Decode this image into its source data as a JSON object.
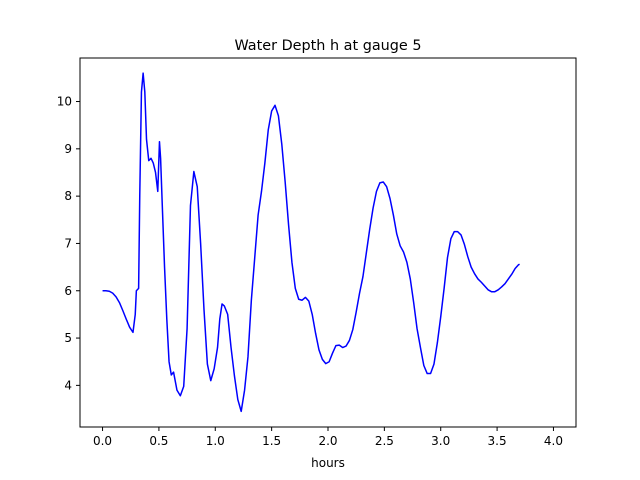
{
  "chart_data": {
    "type": "line",
    "title": "Water Depth h at gauge 5",
    "xlabel": "hours",
    "ylabel": "",
    "xlim": [
      -0.2,
      4.2
    ],
    "ylim": [
      3.12,
      10.92
    ],
    "x_ticks": [
      0.0,
      0.5,
      1.0,
      1.5,
      2.0,
      2.5,
      3.0,
      3.5,
      4.0
    ],
    "x_tick_labels": [
      "0.0",
      "0.5",
      "1.0",
      "1.5",
      "2.0",
      "2.5",
      "3.0",
      "3.5",
      "4.0"
    ],
    "y_ticks": [
      4,
      5,
      6,
      7,
      8,
      9,
      10
    ],
    "y_tick_labels": [
      "4",
      "5",
      "6",
      "7",
      "8",
      "9",
      "10"
    ],
    "grid": false,
    "legend": "none",
    "series": [
      {
        "color": "#0000ff",
        "points": [
          [
            0.0,
            6.0
          ],
          [
            0.03,
            6.0
          ],
          [
            0.06,
            5.99
          ],
          [
            0.09,
            5.95
          ],
          [
            0.12,
            5.87
          ],
          [
            0.15,
            5.75
          ],
          [
            0.18,
            5.58
          ],
          [
            0.21,
            5.4
          ],
          [
            0.24,
            5.23
          ],
          [
            0.27,
            5.12
          ],
          [
            0.29,
            5.5
          ],
          [
            0.3,
            6.0
          ],
          [
            0.32,
            6.05
          ],
          [
            0.33,
            8.0
          ],
          [
            0.345,
            10.2
          ],
          [
            0.36,
            10.6
          ],
          [
            0.375,
            10.2
          ],
          [
            0.39,
            9.2
          ],
          [
            0.41,
            8.75
          ],
          [
            0.43,
            8.8
          ],
          [
            0.45,
            8.7
          ],
          [
            0.47,
            8.5
          ],
          [
            0.49,
            8.1
          ],
          [
            0.505,
            9.15
          ],
          [
            0.515,
            8.8
          ],
          [
            0.53,
            7.8
          ],
          [
            0.55,
            6.5
          ],
          [
            0.57,
            5.4
          ],
          [
            0.59,
            4.5
          ],
          [
            0.61,
            4.22
          ],
          [
            0.63,
            4.28
          ],
          [
            0.66,
            3.9
          ],
          [
            0.69,
            3.78
          ],
          [
            0.72,
            3.98
          ],
          [
            0.75,
            5.2
          ],
          [
            0.78,
            7.8
          ],
          [
            0.81,
            8.52
          ],
          [
            0.84,
            8.2
          ],
          [
            0.87,
            7.0
          ],
          [
            0.9,
            5.6
          ],
          [
            0.93,
            4.45
          ],
          [
            0.96,
            4.1
          ],
          [
            0.99,
            4.35
          ],
          [
            1.02,
            4.8
          ],
          [
            1.04,
            5.4
          ],
          [
            1.06,
            5.72
          ],
          [
            1.08,
            5.68
          ],
          [
            1.11,
            5.5
          ],
          [
            1.14,
            4.8
          ],
          [
            1.17,
            4.2
          ],
          [
            1.2,
            3.7
          ],
          [
            1.23,
            3.45
          ],
          [
            1.26,
            3.9
          ],
          [
            1.29,
            4.6
          ],
          [
            1.32,
            5.8
          ],
          [
            1.35,
            6.7
          ],
          [
            1.38,
            7.6
          ],
          [
            1.41,
            8.1
          ],
          [
            1.44,
            8.7
          ],
          [
            1.47,
            9.4
          ],
          [
            1.5,
            9.8
          ],
          [
            1.53,
            9.92
          ],
          [
            1.56,
            9.7
          ],
          [
            1.59,
            9.1
          ],
          [
            1.62,
            8.3
          ],
          [
            1.65,
            7.4
          ],
          [
            1.68,
            6.6
          ],
          [
            1.71,
            6.05
          ],
          [
            1.74,
            5.82
          ],
          [
            1.77,
            5.8
          ],
          [
            1.8,
            5.86
          ],
          [
            1.83,
            5.78
          ],
          [
            1.86,
            5.5
          ],
          [
            1.89,
            5.1
          ],
          [
            1.92,
            4.75
          ],
          [
            1.95,
            4.55
          ],
          [
            1.98,
            4.46
          ],
          [
            2.01,
            4.5
          ],
          [
            2.04,
            4.68
          ],
          [
            2.07,
            4.84
          ],
          [
            2.1,
            4.85
          ],
          [
            2.13,
            4.8
          ],
          [
            2.16,
            4.83
          ],
          [
            2.19,
            4.95
          ],
          [
            2.22,
            5.18
          ],
          [
            2.25,
            5.55
          ],
          [
            2.28,
            5.95
          ],
          [
            2.31,
            6.3
          ],
          [
            2.34,
            6.8
          ],
          [
            2.37,
            7.3
          ],
          [
            2.4,
            7.75
          ],
          [
            2.43,
            8.1
          ],
          [
            2.46,
            8.28
          ],
          [
            2.49,
            8.3
          ],
          [
            2.52,
            8.2
          ],
          [
            2.55,
            7.95
          ],
          [
            2.58,
            7.6
          ],
          [
            2.61,
            7.2
          ],
          [
            2.64,
            6.95
          ],
          [
            2.67,
            6.82
          ],
          [
            2.7,
            6.6
          ],
          [
            2.73,
            6.25
          ],
          [
            2.76,
            5.75
          ],
          [
            2.79,
            5.2
          ],
          [
            2.82,
            4.8
          ],
          [
            2.85,
            4.42
          ],
          [
            2.88,
            4.25
          ],
          [
            2.91,
            4.25
          ],
          [
            2.94,
            4.45
          ],
          [
            2.97,
            4.9
          ],
          [
            3.0,
            5.45
          ],
          [
            3.03,
            6.05
          ],
          [
            3.06,
            6.7
          ],
          [
            3.09,
            7.1
          ],
          [
            3.12,
            7.25
          ],
          [
            3.15,
            7.25
          ],
          [
            3.18,
            7.18
          ],
          [
            3.21,
            6.98
          ],
          [
            3.24,
            6.72
          ],
          [
            3.27,
            6.5
          ],
          [
            3.3,
            6.36
          ],
          [
            3.33,
            6.25
          ],
          [
            3.36,
            6.18
          ],
          [
            3.39,
            6.1
          ],
          [
            3.42,
            6.02
          ],
          [
            3.45,
            5.98
          ],
          [
            3.48,
            5.98
          ],
          [
            3.51,
            6.02
          ],
          [
            3.54,
            6.08
          ],
          [
            3.57,
            6.15
          ],
          [
            3.6,
            6.25
          ],
          [
            3.63,
            6.35
          ],
          [
            3.66,
            6.47
          ],
          [
            3.69,
            6.55
          ],
          [
            3.7,
            6.56
          ]
        ]
      }
    ]
  }
}
